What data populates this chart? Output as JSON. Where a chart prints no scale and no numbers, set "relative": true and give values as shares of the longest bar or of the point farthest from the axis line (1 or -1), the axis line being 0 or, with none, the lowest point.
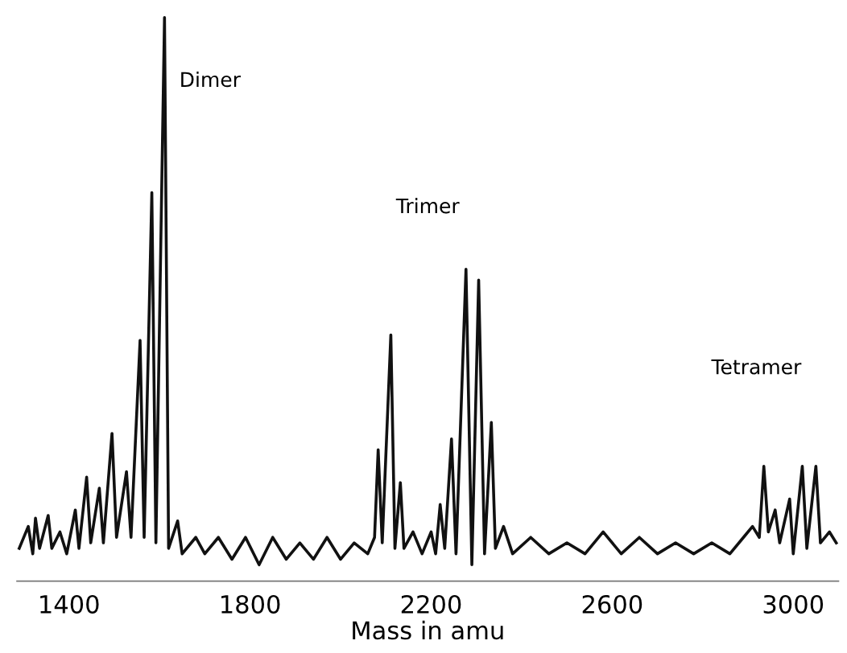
{
  "chart_data": {
    "type": "line",
    "relative": true,
    "xlabel": "Mass in amu",
    "xlim": [
      1285,
      3100
    ],
    "xticks": [
      1400,
      1800,
      2200,
      2600,
      3000
    ],
    "tick_labels": "x",
    "grid": false,
    "legend": false,
    "marker": "none",
    "line_style": "solid",
    "annotations": [
      "Dimer",
      "Trimer",
      "Tetramer"
    ],
    "series": [
      {
        "color": "#111111",
        "x": [
          1290,
          1310,
          1320,
          1326,
          1335,
          1354,
          1362,
          1380,
          1395,
          1414,
          1422,
          1439,
          1448,
          1467,
          1476,
          1495,
          1505,
          1527,
          1537,
          1557,
          1566,
          1583,
          1592,
          1611,
          1620,
          1640,
          1650,
          1680,
          1700,
          1730,
          1760,
          1790,
          1820,
          1850,
          1880,
          1910,
          1940,
          1970,
          2000,
          2030,
          2060,
          2075,
          2083,
          2092,
          2111,
          2120,
          2132,
          2140,
          2160,
          2180,
          2200,
          2210,
          2220,
          2230,
          2245,
          2255,
          2277,
          2290,
          2305,
          2318,
          2333,
          2342,
          2360,
          2380,
          2420,
          2460,
          2500,
          2540,
          2580,
          2620,
          2660,
          2700,
          2740,
          2780,
          2820,
          2860,
          2890,
          2910,
          2925,
          2935,
          2945,
          2960,
          2970,
          2992,
          3000,
          3020,
          3030,
          3050,
          3060,
          3080,
          3095
        ],
        "values": [
          0.03,
          0.07,
          0.02,
          0.085,
          0.03,
          0.09,
          0.03,
          0.06,
          0.02,
          0.1,
          0.03,
          0.16,
          0.04,
          0.14,
          0.04,
          0.24,
          0.05,
          0.17,
          0.05,
          0.41,
          0.05,
          0.68,
          0.04,
          1.0,
          0.03,
          0.08,
          0.02,
          0.05,
          0.02,
          0.05,
          0.01,
          0.05,
          0.0,
          0.05,
          0.01,
          0.04,
          0.01,
          0.05,
          0.01,
          0.04,
          0.02,
          0.05,
          0.21,
          0.04,
          0.42,
          0.03,
          0.15,
          0.03,
          0.06,
          0.02,
          0.06,
          0.02,
          0.11,
          0.03,
          0.23,
          0.02,
          0.54,
          0.0,
          0.52,
          0.02,
          0.26,
          0.03,
          0.07,
          0.02,
          0.05,
          0.02,
          0.04,
          0.02,
          0.06,
          0.02,
          0.05,
          0.02,
          0.04,
          0.02,
          0.04,
          0.02,
          0.05,
          0.07,
          0.05,
          0.18,
          0.06,
          0.1,
          0.04,
          0.12,
          0.02,
          0.18,
          0.03,
          0.18,
          0.04,
          0.06,
          0.04
        ]
      }
    ]
  }
}
